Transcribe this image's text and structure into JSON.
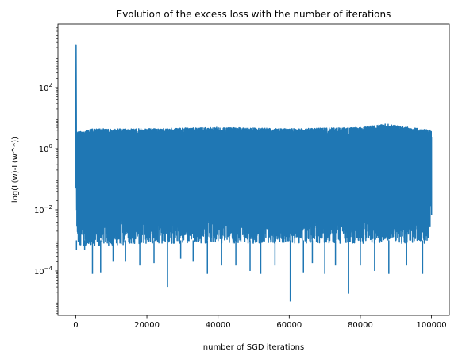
{
  "chart_data": {
    "type": "line",
    "title": "Evolution of the excess loss with the number of iterations",
    "xlabel": "number of SGD iterations",
    "ylabel": "log(L(w)-L(w^*))",
    "xlim": [
      -5000,
      105000
    ],
    "ylim": [
      3.5e-06,
      12000
    ],
    "yscale": "log",
    "grid": false,
    "x_ticks": [
      0,
      20000,
      40000,
      60000,
      80000,
      100000
    ],
    "x_tick_labels": [
      "0",
      "20000",
      "40000",
      "60000",
      "80000",
      "100000"
    ],
    "y_ticks": [
      0.0001,
      0.01,
      1,
      100
    ],
    "y_tick_labels": [
      {
        "base": "10",
        "exp": "−4"
      },
      {
        "base": "10",
        "exp": "−2"
      },
      {
        "base": "10",
        "exp": "0"
      },
      {
        "base": "10",
        "exp": "2"
      }
    ],
    "series": [
      {
        "color": "#1f77b4",
        "x_range": [
          0,
          100000
        ],
        "initial_spike": {
          "x": 100,
          "y": 2500
        },
        "upper_envelope": [
          [
            300,
            3.5
          ],
          [
            5000,
            4.5
          ],
          [
            20000,
            4.5
          ],
          [
            40000,
            5
          ],
          [
            60000,
            4.5
          ],
          [
            80000,
            5
          ],
          [
            87000,
            6.5
          ],
          [
            100000,
            4
          ]
        ],
        "lower_envelope": [
          [
            300,
            0.0006
          ],
          [
            20000,
            0.0008
          ],
          [
            40000,
            0.0008
          ],
          [
            60000,
            0.0008
          ],
          [
            80000,
            0.0008
          ],
          [
            99000,
            0.0008
          ],
          [
            100000,
            0.006
          ]
        ],
        "low_spikes": [
          [
            200,
            0.0005
          ],
          [
            2500,
            0.0005
          ],
          [
            4700,
            8e-05
          ],
          [
            7000,
            9e-05
          ],
          [
            10500,
            0.0002
          ],
          [
            14000,
            0.0002
          ],
          [
            18000,
            0.00015
          ],
          [
            22000,
            0.00018
          ],
          [
            25800,
            3e-05
          ],
          [
            29500,
            0.00025
          ],
          [
            33000,
            0.0002
          ],
          [
            37000,
            8e-05
          ],
          [
            41000,
            0.00015
          ],
          [
            45000,
            0.00015
          ],
          [
            49000,
            0.0001
          ],
          [
            52000,
            8e-05
          ],
          [
            56000,
            0.00015
          ],
          [
            60300,
            1e-05
          ],
          [
            64000,
            9e-05
          ],
          [
            66500,
            0.00018
          ],
          [
            70000,
            8e-05
          ],
          [
            73000,
            0.00015
          ],
          [
            76700,
            1.8e-05
          ],
          [
            80000,
            0.00015
          ],
          [
            84000,
            0.0001
          ],
          [
            88000,
            8e-05
          ],
          [
            93000,
            0.00015
          ],
          [
            97500,
            8e-05
          ]
        ]
      }
    ]
  }
}
